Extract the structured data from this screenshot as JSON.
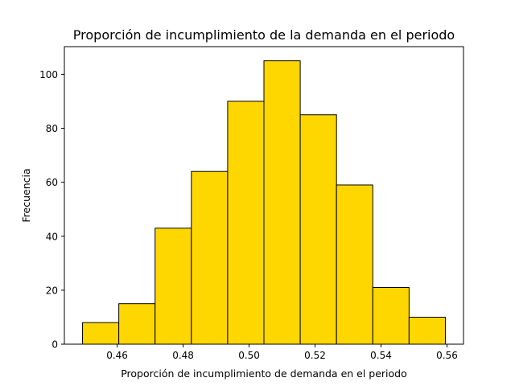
{
  "chart_data": {
    "type": "bar",
    "title": "Proporción de incumplimiento de la demanda en el periodo",
    "xlabel": "Proporción de incumplimiento de demanda en el periodo",
    "ylabel": "Frecuencia",
    "bin_edges": [
      0.4495,
      0.4605,
      0.4715,
      0.4825,
      0.4935,
      0.5045,
      0.5155,
      0.5265,
      0.5375,
      0.5485,
      0.5595
    ],
    "values": [
      8,
      15,
      43,
      64,
      90,
      105,
      85,
      59,
      21,
      10
    ],
    "xlim": [
      0.444,
      0.565
    ],
    "ylim": [
      0,
      110.25
    ],
    "xticks": [
      0.46,
      0.48,
      0.5,
      0.52,
      0.54,
      0.56
    ],
    "xtick_labels": [
      "0.46",
      "0.48",
      "0.50",
      "0.52",
      "0.54",
      "0.56"
    ],
    "yticks": [
      0,
      20,
      40,
      60,
      80,
      100
    ],
    "ytick_labels": [
      "0",
      "20",
      "40",
      "60",
      "80",
      "100"
    ],
    "bar_color": "#FFD700",
    "edge_color": "#000000",
    "grid": false,
    "legend": "none"
  }
}
